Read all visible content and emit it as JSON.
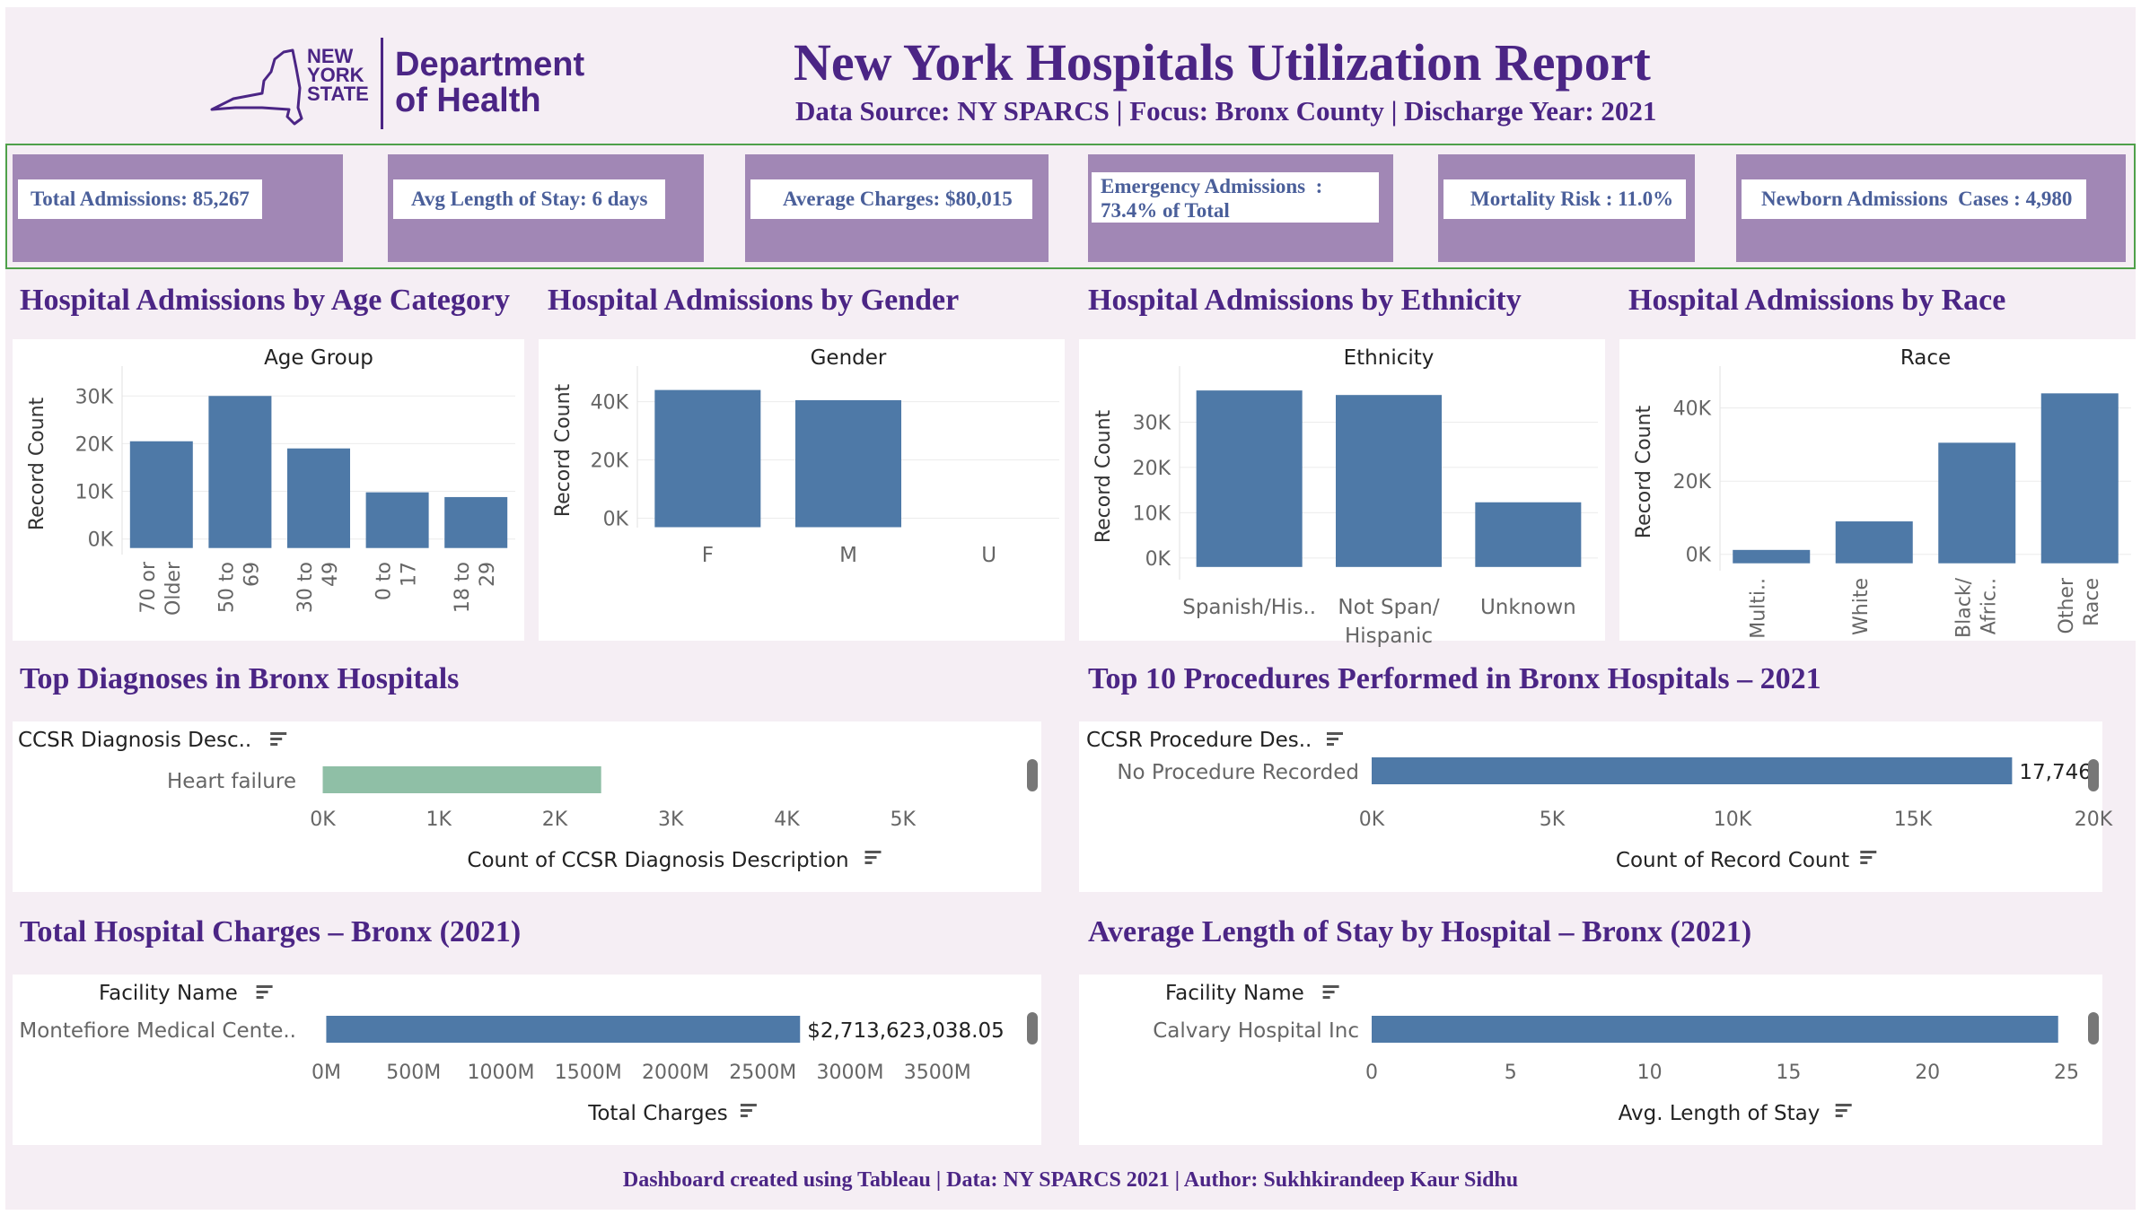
{
  "header": {
    "logo_text_state": "NEW\nYORK\nSTATE",
    "logo_text_dept": "Department\nof Health",
    "title": "New York Hospitals Utilization Report",
    "subtitle": "Data Source: NY SPARCS | Focus: Bronx County | Discharge Year: 2021"
  },
  "kpis": [
    {
      "label": "Total Admissions: 85,267"
    },
    {
      "label": "Avg Length of Stay: 6 days"
    },
    {
      "label": "Average Charges: $80,015"
    },
    {
      "label": "Emergency Admissions  :\n73.4% of Total"
    },
    {
      "label": "Mortality Risk : 11.0%"
    },
    {
      "label": "Newborn Admissions  Cases : 4,980"
    }
  ],
  "sections": {
    "age": "Hospital Admissions by Age Category",
    "gender": "Hospital Admissions by Gender",
    "ethnicity": "Hospital Admissions by Ethnicity",
    "race": "Hospital Admissions by Race",
    "diagnoses": "Top Diagnoses in Bronx Hospitals",
    "procedures": "Top 10 Procedures Performed in Bronx Hospitals – 2021",
    "charges": "Total Hospital Charges – Bronx (2021)",
    "los": "Average Length of Stay by Hospital – Bronx (2021)"
  },
  "footer": "Dashboard created using Tableau | Data: NY SPARCS 2021 | Author: Sukhkirandeep Kaur Sidhu",
  "colors": {
    "bar": "#4e79a7",
    "diag_bar": "#8fbfa6",
    "accent": "#4b2585",
    "kpi_bg": "#a187b5"
  },
  "chart_data": [
    {
      "id": "age",
      "type": "bar",
      "title": "Age Group",
      "ylabel": "Record Count",
      "categories": [
        "70 or Older",
        "50 to 69",
        "30 to 49",
        "0 to 17",
        "18 to 29"
      ],
      "values": [
        20500,
        30000,
        19000,
        9800,
        8800
      ],
      "yticks": [
        {
          "v": 0,
          "t": "0K"
        },
        {
          "v": 10000,
          "t": "10K"
        },
        {
          "v": 20000,
          "t": "20K"
        },
        {
          "v": 30000,
          "t": "30K"
        }
      ],
      "ylim": [
        -2500,
        34000
      ],
      "labels_rotated": true
    },
    {
      "id": "gender",
      "type": "bar",
      "title": "Gender",
      "ylabel": "Record Count",
      "categories": [
        "F",
        "M",
        "U"
      ],
      "values": [
        44000,
        40500,
        0
      ],
      "yticks": [
        {
          "v": 0,
          "t": "0K"
        },
        {
          "v": 20000,
          "t": "20K"
        },
        {
          "v": 40000,
          "t": "40K"
        }
      ],
      "ylim": [
        -2000,
        48500
      ],
      "labels_rotated": false
    },
    {
      "id": "ethnicity",
      "type": "bar",
      "title": "Ethnicity",
      "ylabel": "Record Count",
      "categories": [
        "Spanish/His..",
        "Not Span/\nHispanic",
        "Unknown"
      ],
      "values": [
        37000,
        36000,
        12300
      ],
      "yticks": [
        {
          "v": 0,
          "t": "0K"
        },
        {
          "v": 10000,
          "t": "10K"
        },
        {
          "v": 20000,
          "t": "20K"
        },
        {
          "v": 30000,
          "t": "30K"
        }
      ],
      "ylim": [
        -4000,
        40000
      ],
      "labels_rotated": false
    },
    {
      "id": "race",
      "type": "bar",
      "title": "Race",
      "ylabel": "Record Count",
      "categories": [
        "Multi..",
        "White",
        "Black/\nAfric..",
        "Other\nRace"
      ],
      "values": [
        1200,
        9000,
        30500,
        44000
      ],
      "yticks": [
        {
          "v": 0,
          "t": "0K"
        },
        {
          "v": 20000,
          "t": "20K"
        },
        {
          "v": 40000,
          "t": "40K"
        }
      ],
      "ylim": [
        -3500,
        48500
      ],
      "labels_rotated": true
    },
    {
      "id": "diagnoses",
      "type": "bar",
      "orientation": "horizontal",
      "header": "CCSR Diagnosis Desc..",
      "xlabel": "Count of CCSR Diagnosis Description",
      "categories": [
        "Heart failure"
      ],
      "values": [
        2400
      ],
      "xticks": [
        {
          "v": 0,
          "t": "0K"
        },
        {
          "v": 1000,
          "t": "1K"
        },
        {
          "v": 2000,
          "t": "2K"
        },
        {
          "v": 3000,
          "t": "3K"
        },
        {
          "v": 4000,
          "t": "4K"
        },
        {
          "v": 5000,
          "t": "5K"
        }
      ],
      "xlim": [
        -120,
        5900
      ],
      "value_label": ""
    },
    {
      "id": "procedures",
      "type": "bar",
      "orientation": "horizontal",
      "header": "CCSR Procedure Des..",
      "xlabel": "Count of Record Count",
      "categories": [
        "No Procedure Recorded"
      ],
      "values": [
        17746
      ],
      "xticks": [
        {
          "v": 0,
          "t": "0K"
        },
        {
          "v": 5000,
          "t": "5K"
        },
        {
          "v": 10000,
          "t": "10K"
        },
        {
          "v": 15000,
          "t": "15K"
        },
        {
          "v": 20000,
          "t": "20K"
        }
      ],
      "xlim": [
        0,
        20000
      ],
      "value_label": "17,746"
    },
    {
      "id": "charges",
      "type": "bar",
      "orientation": "horizontal",
      "header": "Facility Name",
      "xlabel": "Total Charges",
      "categories": [
        "Montefiore Medical Cente.."
      ],
      "values": [
        2713623038.05
      ],
      "xticks": [
        {
          "v": 0,
          "t": "0M"
        },
        {
          "v": 500000000,
          "t": "500M"
        },
        {
          "v": 1000000000,
          "t": "1000M"
        },
        {
          "v": 1500000000,
          "t": "1500M"
        },
        {
          "v": 2000000000,
          "t": "2000M"
        },
        {
          "v": 2500000000,
          "t": "2500M"
        },
        {
          "v": 3000000000,
          "t": "3000M"
        },
        {
          "v": 3500000000,
          "t": "3500M"
        }
      ],
      "xlim": [
        -100000000,
        3900000000
      ],
      "value_label": "$2,713,623,038.05"
    },
    {
      "id": "los",
      "type": "bar",
      "orientation": "horizontal",
      "header": "Facility Name",
      "xlabel": "Avg. Length of Stay",
      "categories": [
        "Calvary Hospital Inc"
      ],
      "values": [
        24.7
      ],
      "xticks": [
        {
          "v": 0,
          "t": "0"
        },
        {
          "v": 5,
          "t": "5"
        },
        {
          "v": 10,
          "t": "10"
        },
        {
          "v": 15,
          "t": "15"
        },
        {
          "v": 20,
          "t": "20"
        },
        {
          "v": 25,
          "t": "25"
        }
      ],
      "xlim": [
        0,
        25
      ],
      "value_label": ""
    }
  ]
}
